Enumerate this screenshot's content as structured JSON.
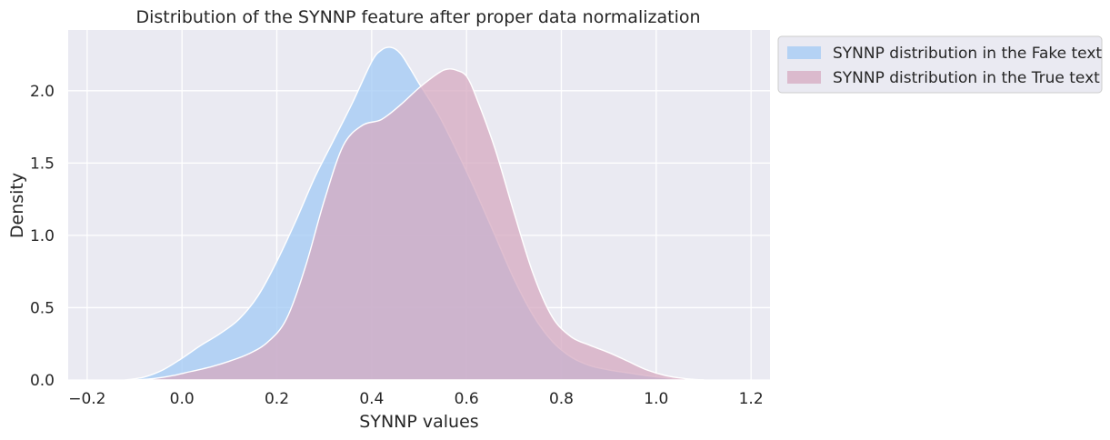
{
  "chart_data": {
    "type": "area",
    "title": "Distribution of the SYNNP feature after proper data normalization",
    "xlabel": "SYNNP values",
    "ylabel": "Density",
    "xlim": [
      -0.24,
      1.24
    ],
    "ylim": [
      0.0,
      2.42
    ],
    "xticks": [
      -0.2,
      0.0,
      0.2,
      0.4,
      0.6,
      0.8,
      1.0,
      1.2
    ],
    "xtick_labels": [
      "−0.2",
      "0.0",
      "0.2",
      "0.4",
      "0.6",
      "0.8",
      "1.0",
      "1.2"
    ],
    "yticks": [
      0.0,
      0.5,
      1.0,
      1.5,
      2.0
    ],
    "ytick_labels": [
      "0.0",
      "0.5",
      "1.0",
      "1.5",
      "2.0"
    ],
    "grid": true,
    "legend_position": "outside-top-right",
    "series": [
      {
        "name": "SYNNP distribution in the Fake text",
        "color": "#a1c9f4",
        "x": [
          -0.12,
          -0.08,
          -0.04,
          0.0,
          0.04,
          0.08,
          0.12,
          0.16,
          0.2,
          0.24,
          0.28,
          0.32,
          0.36,
          0.4,
          0.42,
          0.44,
          0.46,
          0.48,
          0.5,
          0.54,
          0.58,
          0.62,
          0.66,
          0.7,
          0.74,
          0.78,
          0.82,
          0.86,
          0.9,
          0.94,
          0.98,
          1.02,
          1.06,
          1.1
        ],
        "y": [
          0.0,
          0.02,
          0.07,
          0.15,
          0.24,
          0.32,
          0.42,
          0.58,
          0.82,
          1.1,
          1.4,
          1.66,
          1.92,
          2.2,
          2.28,
          2.3,
          2.26,
          2.16,
          2.05,
          1.84,
          1.58,
          1.3,
          1.0,
          0.7,
          0.45,
          0.27,
          0.16,
          0.1,
          0.07,
          0.05,
          0.03,
          0.015,
          0.005,
          0.0
        ]
      },
      {
        "name": "SYNNP distribution in the True text",
        "color": "#d6a9c0",
        "x": [
          -0.1,
          -0.06,
          -0.02,
          0.02,
          0.06,
          0.1,
          0.14,
          0.18,
          0.22,
          0.26,
          0.3,
          0.34,
          0.38,
          0.42,
          0.46,
          0.5,
          0.54,
          0.56,
          0.58,
          0.6,
          0.62,
          0.66,
          0.7,
          0.74,
          0.78,
          0.82,
          0.86,
          0.9,
          0.94,
          0.98,
          1.02,
          1.06,
          1.1
        ],
        "y": [
          0.0,
          0.01,
          0.03,
          0.06,
          0.09,
          0.13,
          0.18,
          0.26,
          0.42,
          0.78,
          1.24,
          1.62,
          1.76,
          1.8,
          1.9,
          2.02,
          2.12,
          2.15,
          2.14,
          2.1,
          1.96,
          1.6,
          1.16,
          0.74,
          0.44,
          0.3,
          0.24,
          0.19,
          0.13,
          0.07,
          0.03,
          0.01,
          0.0
        ]
      }
    ]
  },
  "colors": {
    "plot_background": "#eaeaf2",
    "grid": "#ffffff",
    "overlap": "#b4a8d0"
  }
}
